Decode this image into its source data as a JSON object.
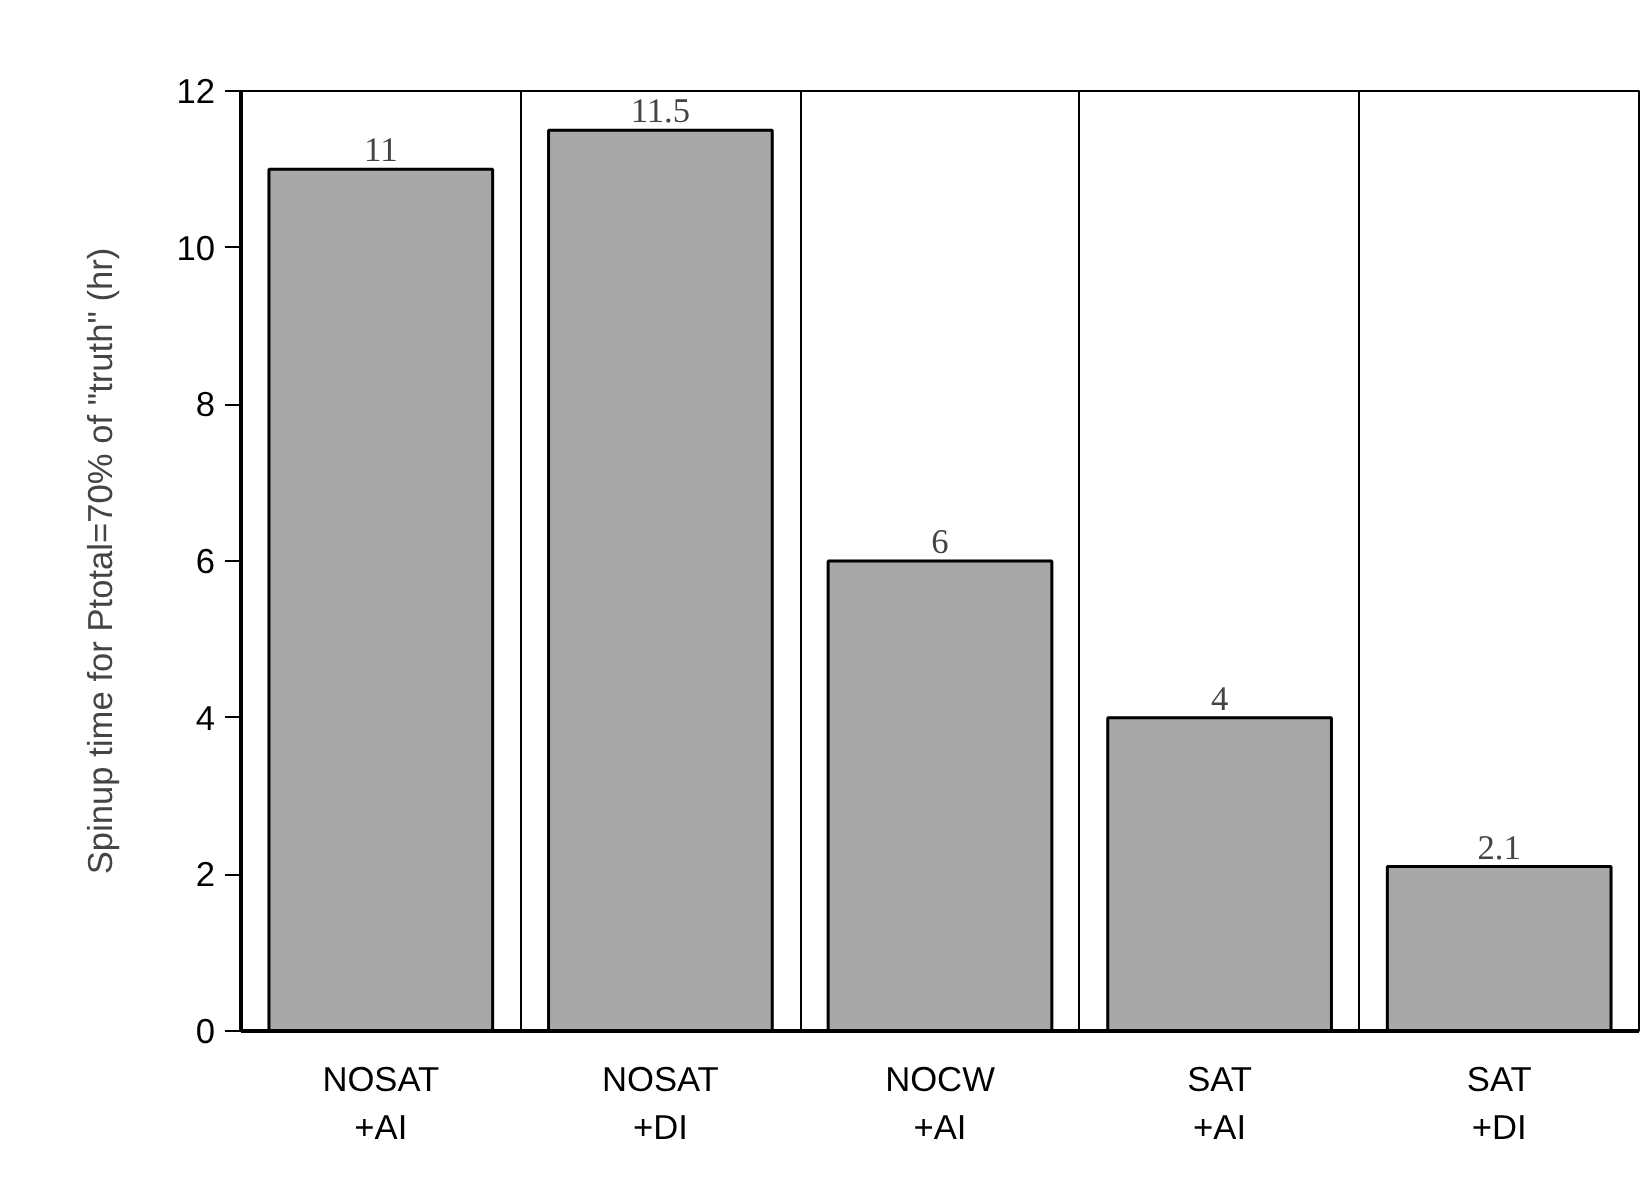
{
  "chart_data": {
    "type": "bar",
    "ylabel": "Spinup time for Ptotal=70% of \"truth\" (hr)",
    "categories": [
      "NOSAT\n+AI",
      "NOSAT\n+DI",
      "NOCW\n+AI",
      "SAT\n+AI",
      "SAT\n+DI"
    ],
    "values": [
      11,
      11.5,
      6,
      4,
      2.1
    ],
    "color": "#a8a8a8",
    "ylim": [
      0,
      12
    ],
    "yticks": [
      0,
      2,
      4,
      6,
      8,
      10,
      12
    ],
    "grid": "x",
    "data_labels": true
  }
}
